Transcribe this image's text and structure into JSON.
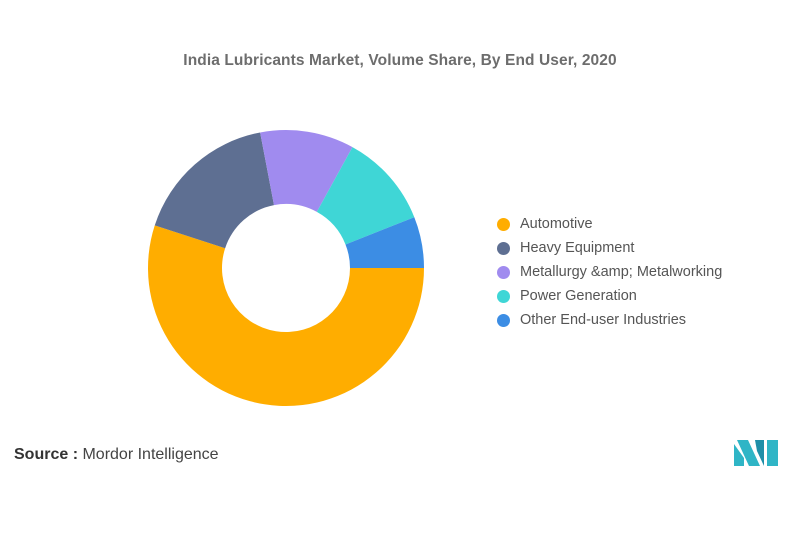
{
  "title": "India Lubricants Market, Volume Share, By End User, 2020",
  "source_label": "Source :",
  "source_value": "Mordor Intelligence",
  "chart_data": {
    "type": "pie",
    "variant": "donut",
    "title": "India Lubricants Market, Volume Share, By End User, 2020",
    "legend_position": "right",
    "slices": [
      {
        "label": "Automotive",
        "value": 55.0,
        "color": "#FFAD00"
      },
      {
        "label": "Heavy Equipment",
        "value": 17.0,
        "color": "#5E6F92"
      },
      {
        "label": "Metallurgy &amp; Metalworking",
        "value": 11.0,
        "color": "#A08BEF"
      },
      {
        "label": "Power Generation",
        "value": 11.0,
        "color": "#3FD6D6"
      },
      {
        "label": "Other End-user Industries",
        "value": 6.0,
        "color": "#3C8DE4"
      }
    ]
  },
  "logo": {
    "icon": "mordor-intelligence-logo-icon",
    "color": "#2fb5c6"
  }
}
